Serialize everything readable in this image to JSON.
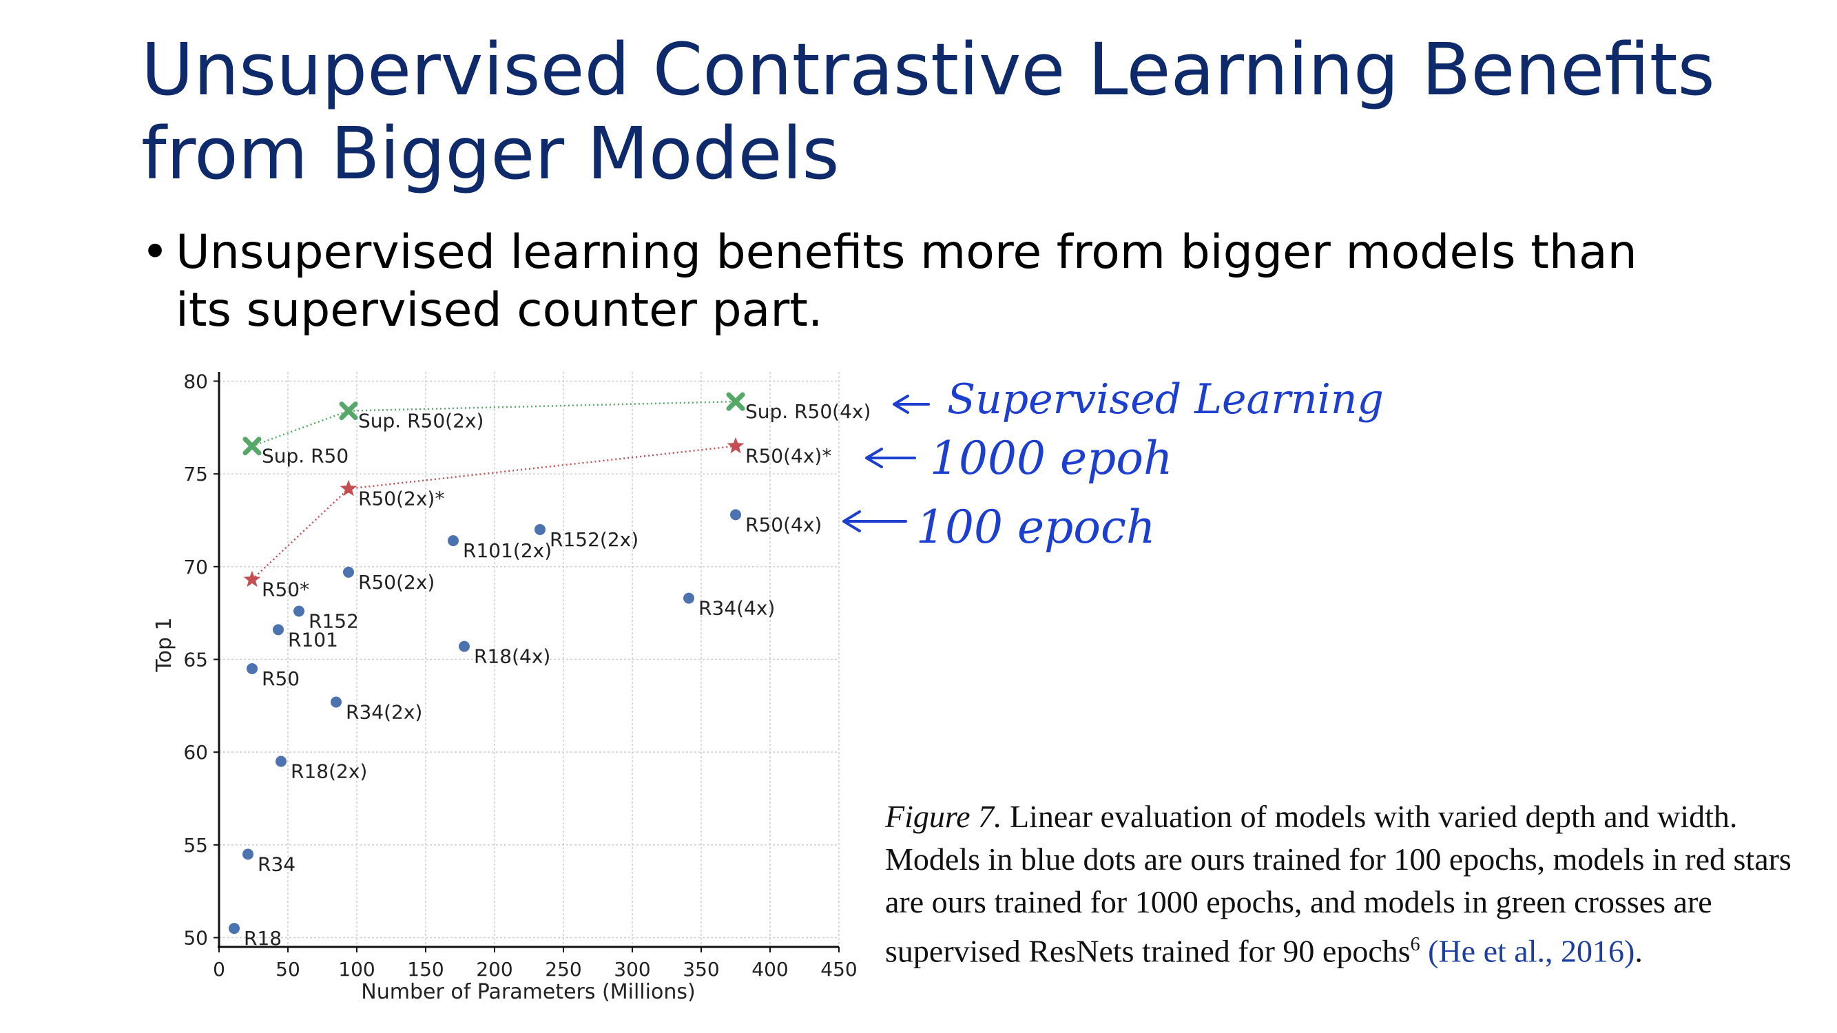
{
  "slide": {
    "title": "Unsupervised Contrastive Learning Benefits from Bigger Models",
    "bullet": "Unsupervised learning benefits more from bigger models than its supervised counter part.",
    "bullet_marker": "•"
  },
  "annotations": [
    {
      "text": "Supervised Learning",
      "color": "#1d3fd0"
    },
    {
      "text": "1000 epoh",
      "color": "#1d3fd0"
    },
    {
      "text": "100 epoch",
      "color": "#1d3fd0"
    }
  ],
  "caption": {
    "figure_label": "Figure 7.",
    "text": "Linear evaluation of models with varied depth and width. Models in blue dots are ours trained for 100 epochs, models in red stars are ours trained for 1000 epochs, and models in green crosses are supervised ResNets trained for 90 epochs",
    "footnote": "6",
    "citation": "(He et al., 2016)",
    "end": "."
  },
  "chart_data": {
    "type": "scatter",
    "xlabel": "Number of Parameters (Millions)",
    "ylabel": "Top 1",
    "xlim": [
      0,
      450
    ],
    "ylim": [
      49.5,
      80.5
    ],
    "xticks": [
      0,
      50,
      100,
      150,
      200,
      250,
      300,
      350,
      400,
      450
    ],
    "yticks": [
      50,
      55,
      60,
      65,
      70,
      75,
      80
    ],
    "grid": true,
    "series": [
      {
        "marker": "circle",
        "color": "#4c72b0",
        "connected": false,
        "points": [
          {
            "label": "R18",
            "x": 11,
            "y": 50.5
          },
          {
            "label": "R34",
            "x": 21,
            "y": 54.5
          },
          {
            "label": "R50",
            "x": 24,
            "y": 64.5
          },
          {
            "label": "R101",
            "x": 43,
            "y": 66.6
          },
          {
            "label": "R152",
            "x": 58,
            "y": 67.6
          },
          {
            "label": "R18(2x)",
            "x": 45,
            "y": 59.5
          },
          {
            "label": "R34(2x)",
            "x": 85,
            "y": 62.7
          },
          {
            "label": "R50(2x)",
            "x": 94,
            "y": 69.7
          },
          {
            "label": "R101(2x)",
            "x": 170,
            "y": 71.4
          },
          {
            "label": "R152(2x)",
            "x": 233,
            "y": 72.0
          },
          {
            "label": "R18(4x)",
            "x": 178,
            "y": 65.7
          },
          {
            "label": "R34(4x)",
            "x": 341,
            "y": 68.3
          },
          {
            "label": "R50(4x)",
            "x": 375,
            "y": 72.8
          }
        ]
      },
      {
        "marker": "star",
        "color": "#c44e52",
        "connected": true,
        "points": [
          {
            "label": "R50*",
            "x": 24,
            "y": 69.3
          },
          {
            "label": "R50(2x)*",
            "x": 94,
            "y": 74.2
          },
          {
            "label": "R50(4x)*",
            "x": 375,
            "y": 76.5
          }
        ]
      },
      {
        "marker": "cross",
        "color": "#55a868",
        "connected": true,
        "points": [
          {
            "label": "Sup. R50",
            "x": 24,
            "y": 76.5
          },
          {
            "label": "Sup. R50(2x)",
            "x": 94,
            "y": 78.4
          },
          {
            "label": "Sup. R50(4x)",
            "x": 375,
            "y": 78.9
          }
        ]
      }
    ]
  }
}
